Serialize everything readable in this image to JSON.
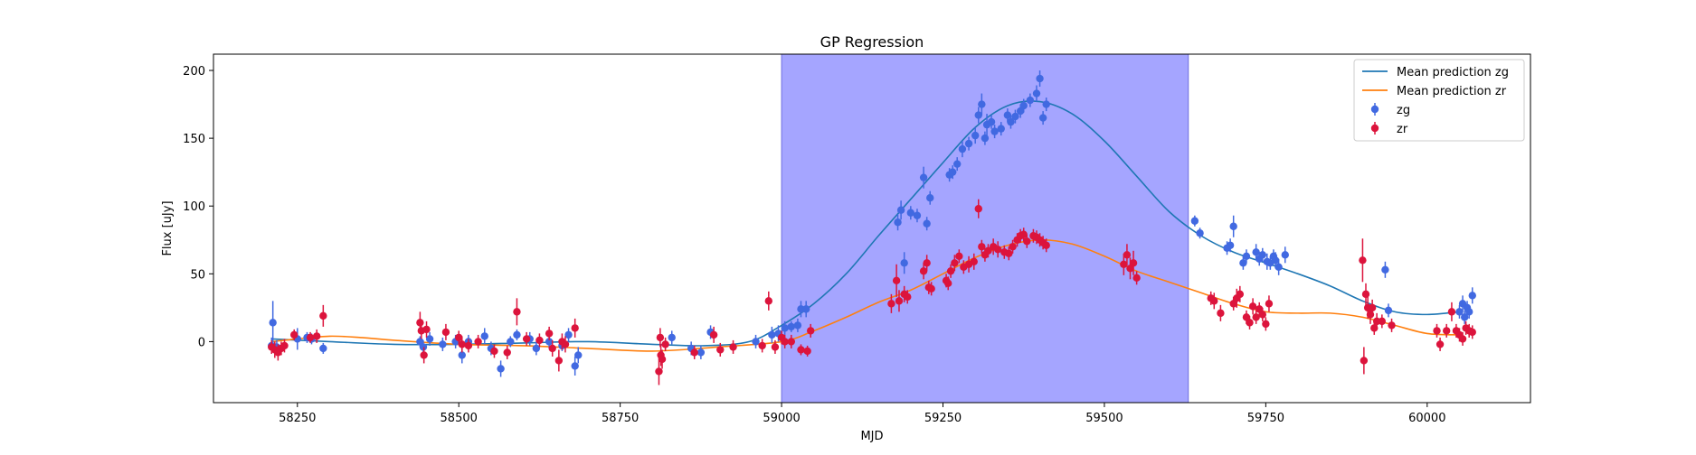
{
  "chart_data": {
    "type": "scatter",
    "title": "GP Regression",
    "xlabel": "MJD",
    "ylabel": "Flux [uJy]",
    "xlim": [
      58120,
      60160
    ],
    "ylim": [
      -45,
      212
    ],
    "xticks": [
      58250,
      58500,
      58750,
      59000,
      59250,
      59500,
      59750,
      60000
    ],
    "yticks": [
      0,
      50,
      100,
      150,
      200
    ],
    "grid": false,
    "legend_position": "top-right",
    "shaded_region": {
      "x_start": 59000,
      "x_end": 59630,
      "color": "#a5a5ff"
    },
    "series": [
      {
        "name": "Mean prediction zg",
        "kind": "line",
        "color": "#1f77b4",
        "x": [
          58210,
          58300,
          58400,
          58500,
          58600,
          58700,
          58800,
          58880,
          58950,
          59000,
          59050,
          59100,
          59150,
          59200,
          59250,
          59300,
          59350,
          59400,
          59450,
          59500,
          59550,
          59600,
          59650,
          59700,
          59750,
          59800,
          59850,
          59900,
          59950,
          60000,
          60050
        ],
        "y": [
          2,
          0,
          -2,
          -2,
          -1,
          0,
          -2,
          -3,
          0,
          12,
          28,
          50,
          78,
          105,
          132,
          158,
          174,
          177,
          168,
          148,
          122,
          96,
          78,
          66,
          58,
          50,
          41,
          30,
          22,
          20,
          22
        ]
      },
      {
        "name": "Mean prediction zr",
        "kind": "line",
        "color": "#ff7f0e",
        "x": [
          58210,
          58250,
          58300,
          58350,
          58400,
          58500,
          58600,
          58700,
          58800,
          58900,
          59000,
          59050,
          59100,
          59150,
          59200,
          59250,
          59300,
          59350,
          59400,
          59450,
          59500,
          59550,
          59600,
          59650,
          59700,
          59750,
          59800,
          59850,
          59900,
          59950,
          60000,
          60050
        ],
        "y": [
          0,
          2,
          4,
          3,
          1,
          -2,
          -3,
          -5,
          -7,
          -4,
          0,
          8,
          18,
          29,
          38,
          50,
          62,
          71,
          75,
          72,
          63,
          52,
          44,
          36,
          28,
          22,
          21,
          21,
          18,
          12,
          6,
          5
        ]
      },
      {
        "name": "zg",
        "kind": "errorbar",
        "color": "#4169e1",
        "points": [
          [
            58210,
            -3,
            6
          ],
          [
            58212,
            14,
            16
          ],
          [
            58218,
            -4,
            5
          ],
          [
            58250,
            2,
            8
          ],
          [
            58265,
            3,
            4
          ],
          [
            58272,
            2,
            4
          ],
          [
            58290,
            -5,
            4
          ],
          [
            58440,
            0,
            4
          ],
          [
            58445,
            -4,
            5
          ],
          [
            58455,
            2,
            5
          ],
          [
            58475,
            -2,
            5
          ],
          [
            58495,
            0,
            5
          ],
          [
            58505,
            -10,
            6
          ],
          [
            58515,
            0,
            5
          ],
          [
            58540,
            4,
            6
          ],
          [
            58550,
            -5,
            5
          ],
          [
            58565,
            -20,
            6
          ],
          [
            58580,
            0,
            4
          ],
          [
            58590,
            5,
            4
          ],
          [
            58610,
            2,
            5
          ],
          [
            58620,
            -5,
            5
          ],
          [
            58640,
            0,
            5
          ],
          [
            58660,
            -3,
            4
          ],
          [
            58670,
            5,
            5
          ],
          [
            58680,
            -18,
            7
          ],
          [
            58685,
            -10,
            6
          ],
          [
            58830,
            3,
            5
          ],
          [
            58860,
            -5,
            5
          ],
          [
            58875,
            -8,
            5
          ],
          [
            58890,
            7,
            5
          ],
          [
            58960,
            0,
            5
          ],
          [
            58985,
            5,
            6
          ],
          [
            58995,
            6,
            6
          ],
          [
            59005,
            10,
            5
          ],
          [
            59015,
            11,
            4
          ],
          [
            59025,
            12,
            5
          ],
          [
            59030,
            24,
            6
          ],
          [
            59038,
            24,
            6
          ],
          [
            59180,
            88,
            6
          ],
          [
            59185,
            97,
            7
          ],
          [
            59190,
            58,
            8
          ],
          [
            59200,
            95,
            5
          ],
          [
            59210,
            93,
            5
          ],
          [
            59220,
            121,
            8
          ],
          [
            59225,
            87,
            5
          ],
          [
            59230,
            106,
            5
          ],
          [
            59260,
            123,
            5
          ],
          [
            59265,
            125,
            5
          ],
          [
            59272,
            131,
            5
          ],
          [
            59280,
            142,
            6
          ],
          [
            59290,
            146,
            5
          ],
          [
            59300,
            152,
            6
          ],
          [
            59305,
            167,
            6
          ],
          [
            59310,
            175,
            8
          ],
          [
            59315,
            150,
            5
          ],
          [
            59318,
            160,
            8
          ],
          [
            59325,
            162,
            5
          ],
          [
            59330,
            155,
            5
          ],
          [
            59340,
            157,
            5
          ],
          [
            59350,
            167,
            5
          ],
          [
            59355,
            162,
            5
          ],
          [
            59362,
            166,
            5
          ],
          [
            59370,
            170,
            5
          ],
          [
            59375,
            174,
            5
          ],
          [
            59385,
            178,
            5
          ],
          [
            59395,
            183,
            6
          ],
          [
            59400,
            194,
            6
          ],
          [
            59405,
            165,
            5
          ],
          [
            59410,
            175,
            5
          ],
          [
            59640,
            89,
            4
          ],
          [
            59648,
            80,
            4
          ],
          [
            59690,
            69,
            5
          ],
          [
            59695,
            71,
            5
          ],
          [
            59700,
            85,
            8
          ],
          [
            59715,
            58,
            5
          ],
          [
            59720,
            63,
            5
          ],
          [
            59735,
            66,
            6
          ],
          [
            59740,
            61,
            5
          ],
          [
            59745,
            64,
            5
          ],
          [
            59752,
            59,
            6
          ],
          [
            59757,
            58,
            5
          ],
          [
            59762,
            63,
            5
          ],
          [
            59765,
            60,
            6
          ],
          [
            59770,
            55,
            6
          ],
          [
            59780,
            64,
            6
          ],
          [
            59935,
            53,
            6
          ],
          [
            59940,
            23,
            5
          ],
          [
            60050,
            22,
            5
          ],
          [
            60055,
            28,
            6
          ],
          [
            60058,
            18,
            5
          ],
          [
            60062,
            25,
            5
          ],
          [
            60065,
            22,
            5
          ],
          [
            60070,
            34,
            6
          ]
        ]
      },
      {
        "name": "zr",
        "kind": "errorbar",
        "color": "#dc143c",
        "points": [
          [
            58210,
            -4,
            5
          ],
          [
            58215,
            -6,
            6
          ],
          [
            58220,
            -8,
            6
          ],
          [
            58225,
            -5,
            5
          ],
          [
            58230,
            -3,
            5
          ],
          [
            58245,
            5,
            4
          ],
          [
            58270,
            3,
            4
          ],
          [
            58280,
            4,
            5
          ],
          [
            58290,
            19,
            8
          ],
          [
            58440,
            14,
            8
          ],
          [
            58442,
            8,
            6
          ],
          [
            58446,
            -10,
            6
          ],
          [
            58450,
            9,
            6
          ],
          [
            58480,
            7,
            6
          ],
          [
            58500,
            3,
            5
          ],
          [
            58505,
            -2,
            6
          ],
          [
            58515,
            -3,
            5
          ],
          [
            58530,
            0,
            5
          ],
          [
            58555,
            -7,
            5
          ],
          [
            58575,
            -8,
            5
          ],
          [
            58590,
            22,
            10
          ],
          [
            58605,
            2,
            5
          ],
          [
            58625,
            1,
            5
          ],
          [
            58640,
            6,
            5
          ],
          [
            58645,
            -5,
            6
          ],
          [
            58655,
            -14,
            8
          ],
          [
            58660,
            0,
            6
          ],
          [
            58665,
            -2,
            6
          ],
          [
            58680,
            10,
            7
          ],
          [
            58810,
            -22,
            10
          ],
          [
            58812,
            3,
            7
          ],
          [
            58813,
            -10,
            8
          ],
          [
            58815,
            -13,
            7
          ],
          [
            58820,
            -2,
            5
          ],
          [
            58865,
            -8,
            5
          ],
          [
            58895,
            5,
            6
          ],
          [
            58905,
            -6,
            5
          ],
          [
            58925,
            -4,
            5
          ],
          [
            58970,
            -3,
            5
          ],
          [
            58980,
            30,
            7
          ],
          [
            58990,
            -4,
            5
          ],
          [
            59000,
            3,
            5
          ],
          [
            59005,
            0,
            5
          ],
          [
            59015,
            0,
            5
          ],
          [
            59030,
            -6,
            4
          ],
          [
            59040,
            -7,
            4
          ],
          [
            59045,
            8,
            5
          ],
          [
            59170,
            28,
            7
          ],
          [
            59178,
            45,
            12
          ],
          [
            59182,
            30,
            8
          ],
          [
            59190,
            35,
            6
          ],
          [
            59195,
            33,
            5
          ],
          [
            59220,
            52,
            6
          ],
          [
            59225,
            58,
            6
          ],
          [
            59228,
            40,
            5
          ],
          [
            59232,
            39,
            5
          ],
          [
            59255,
            45,
            5
          ],
          [
            59258,
            43,
            5
          ],
          [
            59262,
            52,
            5
          ],
          [
            59268,
            58,
            6
          ],
          [
            59275,
            63,
            5
          ],
          [
            59282,
            55,
            5
          ],
          [
            59290,
            57,
            6
          ],
          [
            59298,
            59,
            6
          ],
          [
            59305,
            98,
            7
          ],
          [
            59310,
            70,
            5
          ],
          [
            59315,
            64,
            5
          ],
          [
            59320,
            67,
            5
          ],
          [
            59328,
            70,
            6
          ],
          [
            59335,
            68,
            6
          ],
          [
            59345,
            66,
            5
          ],
          [
            59352,
            65,
            5
          ],
          [
            59358,
            70,
            5
          ],
          [
            59365,
            75,
            5
          ],
          [
            59370,
            78,
            5
          ],
          [
            59375,
            79,
            5
          ],
          [
            59380,
            74,
            5
          ],
          [
            59390,
            78,
            5
          ],
          [
            59395,
            77,
            5
          ],
          [
            59400,
            75,
            5
          ],
          [
            59405,
            73,
            5
          ],
          [
            59410,
            71,
            5
          ],
          [
            59530,
            57,
            8
          ],
          [
            59535,
            64,
            8
          ],
          [
            59540,
            54,
            8
          ],
          [
            59545,
            58,
            9
          ],
          [
            59550,
            47,
            5
          ],
          [
            59665,
            32,
            5
          ],
          [
            59670,
            30,
            6
          ],
          [
            59680,
            21,
            6
          ],
          [
            59700,
            28,
            5
          ],
          [
            59705,
            32,
            7
          ],
          [
            59710,
            35,
            6
          ],
          [
            59720,
            18,
            5
          ],
          [
            59725,
            14,
            5
          ],
          [
            59730,
            26,
            6
          ],
          [
            59735,
            18,
            5
          ],
          [
            59740,
            24,
            5
          ],
          [
            59745,
            20,
            5
          ],
          [
            59750,
            13,
            5
          ],
          [
            59755,
            28,
            6
          ],
          [
            59900,
            60,
            16
          ],
          [
            59902,
            -14,
            10
          ],
          [
            59905,
            35,
            8
          ],
          [
            59908,
            25,
            8
          ],
          [
            59912,
            20,
            7
          ],
          [
            59915,
            25,
            6
          ],
          [
            59918,
            10,
            5
          ],
          [
            59922,
            15,
            6
          ],
          [
            59930,
            15,
            5
          ],
          [
            59945,
            12,
            5
          ],
          [
            60015,
            8,
            5
          ],
          [
            60020,
            -2,
            5
          ],
          [
            60030,
            8,
            5
          ],
          [
            60038,
            22,
            7
          ],
          [
            60045,
            8,
            5
          ],
          [
            60050,
            5,
            5
          ],
          [
            60055,
            2,
            5
          ],
          [
            60060,
            10,
            5
          ],
          [
            60065,
            8,
            5
          ],
          [
            60070,
            7,
            5
          ]
        ]
      }
    ]
  }
}
